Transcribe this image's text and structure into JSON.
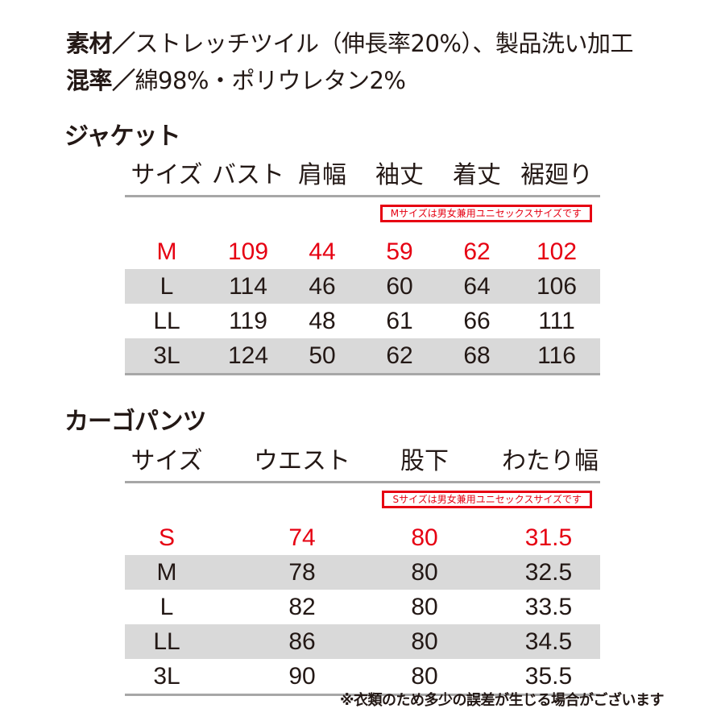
{
  "material": {
    "label": "素材／",
    "value": "ストレッチツイル（伸長率20%）、製品洗い加工"
  },
  "blend": {
    "label": "混率／",
    "value": "綿98%・ポリウレタン2%"
  },
  "jacket": {
    "title": "ジャケット",
    "headers": [
      "サイズ",
      "バスト",
      "肩幅",
      "袖丈",
      "着丈",
      "裾廻り"
    ],
    "notice": "Mサイズは男女兼用ユニセックスサイズです",
    "rows": [
      [
        "M",
        "109",
        "44",
        "59",
        "62",
        "102"
      ],
      [
        "L",
        "114",
        "46",
        "60",
        "64",
        "106"
      ],
      [
        "LL",
        "119",
        "48",
        "61",
        "66",
        "111"
      ],
      [
        "3L",
        "124",
        "50",
        "62",
        "68",
        "116"
      ]
    ]
  },
  "pants": {
    "title": "カーゴパンツ",
    "headers": [
      "サイズ",
      "ウエスト",
      "股下",
      "わたり幅"
    ],
    "notice": "Sサイズは男女兼用ユニセックスサイズです",
    "rows": [
      [
        "S",
        "74",
        "80",
        "31.5"
      ],
      [
        "M",
        "78",
        "80",
        "32.5"
      ],
      [
        "L",
        "82",
        "80",
        "33.5"
      ],
      [
        "LL",
        "86",
        "80",
        "34.5"
      ],
      [
        "3L",
        "90",
        "80",
        "35.5"
      ]
    ]
  },
  "footnote": "※衣類のため多少の誤差が生じる場合がございます",
  "colors": {
    "accent_red": "#e60012",
    "row_gray": "#d9d9d9",
    "rule_gray": "#a7a7a7"
  }
}
